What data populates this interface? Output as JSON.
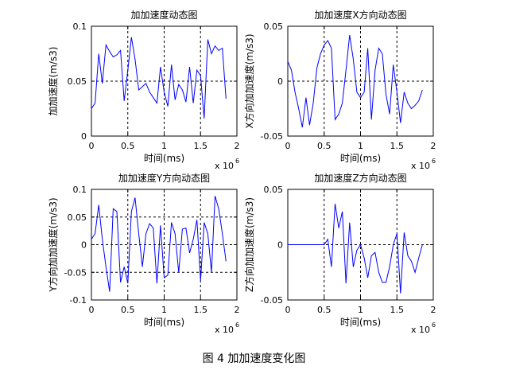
{
  "figure_caption": "图 4  加加速度变化图",
  "colors": {
    "line": "#0000ff",
    "axis": "#000000",
    "background": "#ffffff"
  },
  "chart_data": [
    {
      "type": "line",
      "title": "加加速度动态图",
      "xlabel": "时间(ms)",
      "ylabel": "加加速度(m/s3)",
      "x_multiplier": "x 10",
      "x_multiplier_exp": "6",
      "xlim": [
        0,
        2
      ],
      "ylim": [
        0,
        0.1
      ],
      "xticks": [
        0,
        0.5,
        1,
        1.5,
        2
      ],
      "xtick_labels": [
        "0",
        "0.5",
        "1",
        "1.5",
        "2"
      ],
      "yticks": [
        0,
        0.05,
        0.1
      ],
      "ytick_labels": [
        "0",
        "0.05",
        "0.1"
      ],
      "grid": {
        "vertical_dashed_at": [
          0.5,
          1,
          1.5
        ],
        "horizontal_dashed_at": [
          0.05
        ]
      },
      "series": [
        {
          "x": [
            0,
            0.05,
            0.1,
            0.15,
            0.2,
            0.25,
            0.3,
            0.35,
            0.4,
            0.45,
            0.5,
            0.55,
            0.6,
            0.65,
            0.7,
            0.75,
            0.8,
            0.85,
            0.9,
            0.95,
            1.0,
            1.05,
            1.1,
            1.15,
            1.2,
            1.25,
            1.3,
            1.35,
            1.4,
            1.45,
            1.5,
            1.55,
            1.6,
            1.65,
            1.7,
            1.75,
            1.8,
            1.85
          ],
          "y": [
            0.025,
            0.03,
            0.075,
            0.048,
            0.083,
            0.077,
            0.072,
            0.074,
            0.078,
            0.032,
            0.06,
            0.09,
            0.07,
            0.042,
            0.045,
            0.048,
            0.04,
            0.035,
            0.03,
            0.063,
            0.04,
            0.027,
            0.065,
            0.033,
            0.047,
            0.042,
            0.031,
            0.063,
            0.03,
            0.06,
            0.055,
            0.016,
            0.088,
            0.075,
            0.082,
            0.078,
            0.08,
            0.034
          ]
        }
      ]
    },
    {
      "type": "line",
      "title": "加加速度X方向动态图",
      "xlabel": "时间(ms)",
      "ylabel": "X方向加加速度(m/s3)",
      "x_multiplier": "x 10",
      "x_multiplier_exp": "6",
      "xlim": [
        0,
        2
      ],
      "ylim": [
        -0.05,
        0.05
      ],
      "xticks": [
        0,
        0.5,
        1,
        1.5,
        2
      ],
      "xtick_labels": [
        "0",
        "0.5",
        "1",
        "1.5",
        "2"
      ],
      "yticks": [
        -0.05,
        0,
        0.05
      ],
      "ytick_labels": [
        "-0.05",
        "0",
        "0.05"
      ],
      "grid": {
        "vertical_dashed_at": [
          0.5,
          1,
          1.5
        ],
        "horizontal_dashed_at": [
          0
        ]
      },
      "series": [
        {
          "x": [
            0,
            0.05,
            0.1,
            0.15,
            0.2,
            0.25,
            0.3,
            0.35,
            0.4,
            0.45,
            0.5,
            0.55,
            0.6,
            0.65,
            0.7,
            0.75,
            0.8,
            0.85,
            0.9,
            0.95,
            1.0,
            1.05,
            1.1,
            1.15,
            1.2,
            1.25,
            1.3,
            1.35,
            1.4,
            1.45,
            1.5,
            1.55,
            1.6,
            1.65,
            1.7,
            1.75,
            1.8,
            1.85
          ],
          "y": [
            0.018,
            0.01,
            -0.01,
            -0.025,
            -0.042,
            -0.015,
            -0.04,
            -0.02,
            0.012,
            0.025,
            0.033,
            0.037,
            0.03,
            -0.035,
            -0.03,
            -0.02,
            0.01,
            0.042,
            0.02,
            -0.01,
            -0.015,
            -0.01,
            0.03,
            -0.035,
            0.01,
            0.03,
            0.025,
            -0.012,
            -0.03,
            0.015,
            -0.01,
            -0.038,
            -0.01,
            -0.02,
            -0.025,
            -0.022,
            -0.018,
            -0.008
          ]
        }
      ]
    },
    {
      "type": "line",
      "title": "加加速度Y方向动态图",
      "xlabel": "时间(ms)",
      "ylabel": "Y方向加加速度(m/s3)",
      "x_multiplier": "x 10",
      "x_multiplier_exp": "6",
      "xlim": [
        0,
        2
      ],
      "ylim": [
        -0.1,
        0.1
      ],
      "xticks": [
        0,
        0.5,
        1,
        1.5,
        2
      ],
      "xtick_labels": [
        "0",
        "0.5",
        "1",
        "1.5",
        "2"
      ],
      "yticks": [
        -0.1,
        -0.05,
        0,
        0.05,
        0.1
      ],
      "ytick_labels": [
        "-0.1",
        "-0.05",
        "0",
        "0.05",
        "0.1"
      ],
      "grid": {
        "vertical_dashed_at": [
          0.5,
          1,
          1.5
        ],
        "horizontal_dashed_at": [
          -0.05,
          0,
          0.05
        ]
      },
      "series": [
        {
          "x": [
            0,
            0.05,
            0.1,
            0.15,
            0.2,
            0.25,
            0.3,
            0.35,
            0.4,
            0.45,
            0.5,
            0.55,
            0.6,
            0.65,
            0.7,
            0.75,
            0.8,
            0.85,
            0.9,
            0.95,
            1.0,
            1.05,
            1.1,
            1.15,
            1.2,
            1.25,
            1.3,
            1.35,
            1.4,
            1.45,
            1.5,
            1.55,
            1.6,
            1.65,
            1.7,
            1.75,
            1.8,
            1.85
          ],
          "y": [
            0.01,
            0.02,
            0.072,
            0.01,
            -0.04,
            -0.085,
            0.065,
            0.06,
            -0.068,
            -0.04,
            -0.07,
            0.06,
            0.085,
            0.02,
            -0.04,
            0.02,
            0.038,
            0.03,
            -0.07,
            0.035,
            -0.06,
            -0.055,
            0.04,
            0.02,
            -0.05,
            0.028,
            0.03,
            -0.015,
            0.01,
            0.045,
            -0.065,
            0.04,
            0.02,
            -0.05,
            0.088,
            0.065,
            0.02,
            -0.03
          ]
        }
      ]
    },
    {
      "type": "line",
      "title": "加加速度Z方向动态图",
      "xlabel": "时间(ms)",
      "ylabel": "Z方向加加速度(m/s3)",
      "x_multiplier": "x 10",
      "x_multiplier_exp": "6",
      "xlim": [
        0,
        2
      ],
      "ylim": [
        -0.05,
        0.05
      ],
      "xticks": [
        0,
        0.5,
        1,
        1.5,
        2
      ],
      "xtick_labels": [
        "0",
        "0.5",
        "1",
        "1.5",
        "2"
      ],
      "yticks": [
        -0.05,
        0,
        0.05
      ],
      "ytick_labels": [
        "-0.05",
        "0",
        "0.05"
      ],
      "grid": {
        "vertical_dashed_at": [
          0.5,
          1,
          1.5
        ],
        "horizontal_dashed_at": [
          0
        ]
      },
      "series": [
        {
          "x": [
            0,
            0.1,
            0.2,
            0.3,
            0.4,
            0.5,
            0.55,
            0.6,
            0.65,
            0.7,
            0.75,
            0.8,
            0.85,
            0.9,
            0.95,
            1.0,
            1.05,
            1.1,
            1.15,
            1.2,
            1.25,
            1.3,
            1.35,
            1.4,
            1.45,
            1.5,
            1.55,
            1.6,
            1.65,
            1.7,
            1.75,
            1.8,
            1.85
          ],
          "y": [
            0,
            0,
            0,
            0,
            0,
            0,
            0.005,
            -0.02,
            0.037,
            0.015,
            0.03,
            -0.035,
            0.02,
            -0.02,
            -0.005,
            0.0,
            -0.012,
            -0.03,
            -0.01,
            -0.007,
            -0.025,
            -0.034,
            -0.034,
            -0.02,
            0.0,
            0.01,
            -0.044,
            0.011,
            -0.01,
            -0.015,
            -0.025,
            -0.012,
            0.0
          ]
        }
      ]
    }
  ]
}
